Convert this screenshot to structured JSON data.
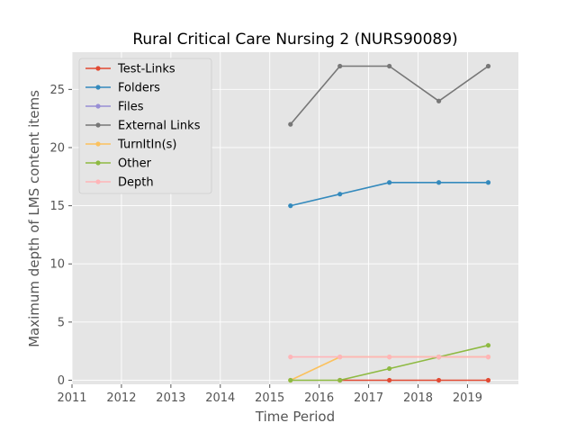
{
  "chart_data": {
    "type": "line",
    "title": "Rural Critical Care Nursing 2 (NURS90089)",
    "xlabel": "Time Period",
    "ylabel": "Maximum depth of LMS content items",
    "xlim": [
      2011,
      2020.03
    ],
    "ylim": [
      -0.35,
      28.2
    ],
    "xticks": [
      2011,
      2012,
      2013,
      2014,
      2015,
      2016,
      2017,
      2018,
      2019
    ],
    "yticks": [
      0,
      5,
      10,
      15,
      20,
      25
    ],
    "grid": true,
    "legend_position": "top-left",
    "x": [
      2015.42,
      2016.42,
      2017.42,
      2018.42,
      2019.42
    ],
    "series": [
      {
        "name": "Test-Links",
        "color": "#E24A33",
        "values": [
          null,
          0,
          0,
          0,
          0
        ]
      },
      {
        "name": "Folders",
        "color": "#348ABD",
        "values": [
          15,
          16,
          17,
          17,
          17
        ]
      },
      {
        "name": "Files",
        "color": "#988ED5",
        "values": [
          null,
          null,
          null,
          null,
          null
        ]
      },
      {
        "name": "External Links",
        "color": "#777777",
        "values": [
          22,
          27,
          27,
          24,
          27
        ]
      },
      {
        "name": "TurnItIn(s)",
        "color": "#FBC15E",
        "values": [
          0,
          2,
          2,
          2,
          2
        ]
      },
      {
        "name": "Other",
        "color": "#8EBA42",
        "values": [
          0,
          0,
          1,
          2,
          3
        ]
      },
      {
        "name": "Depth",
        "color": "#FFB5B8",
        "values": [
          2,
          2,
          2,
          2,
          2
        ]
      }
    ]
  }
}
